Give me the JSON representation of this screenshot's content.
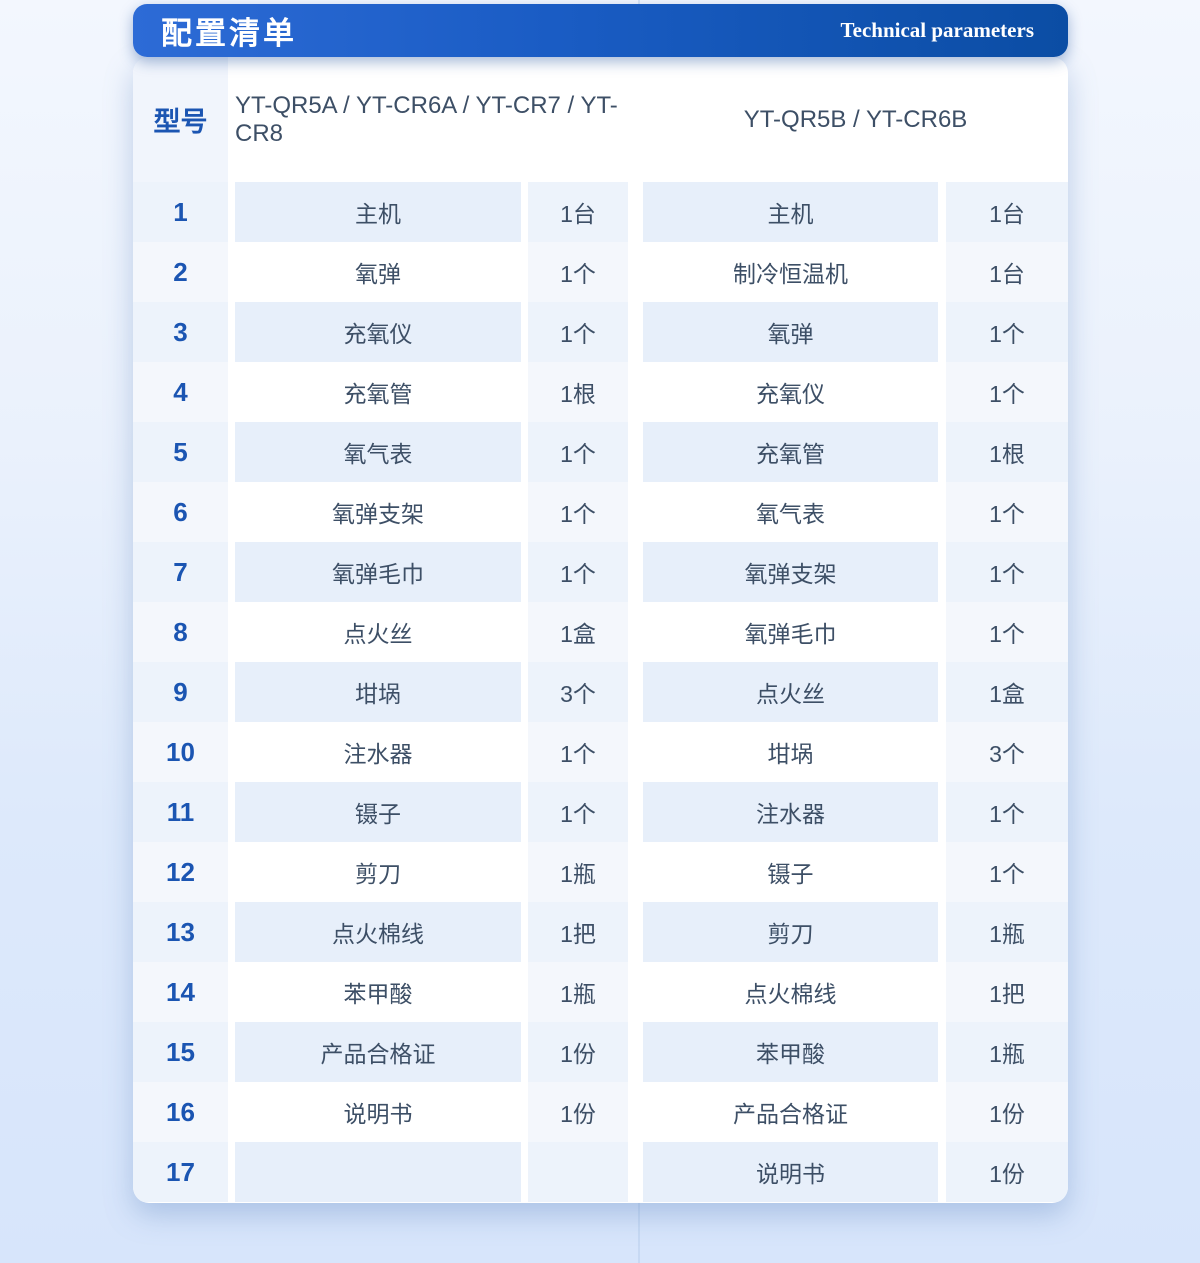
{
  "header": {
    "title": "配置清单",
    "subtitle": "Technical parameters"
  },
  "model_row": {
    "label": "型号",
    "model_a": "YT-QR5A / YT-CR6A / YT-CR7 / YT-CR8",
    "model_b": "YT-QR5B / YT-CR6B"
  },
  "table": {
    "rows": [
      {
        "no": "1",
        "item_a": "主机",
        "qty_a": "1台",
        "item_b": "主机",
        "qty_b": "1台"
      },
      {
        "no": "2",
        "item_a": "氧弹",
        "qty_a": "1个",
        "item_b": "制冷恒温机",
        "qty_b": "1台"
      },
      {
        "no": "3",
        "item_a": "充氧仪",
        "qty_a": "1个",
        "item_b": "氧弹",
        "qty_b": "1个"
      },
      {
        "no": "4",
        "item_a": "充氧管",
        "qty_a": "1根",
        "item_b": "充氧仪",
        "qty_b": "1个"
      },
      {
        "no": "5",
        "item_a": "氧气表",
        "qty_a": "1个",
        "item_b": "充氧管",
        "qty_b": "1根"
      },
      {
        "no": "6",
        "item_a": "氧弹支架",
        "qty_a": "1个",
        "item_b": "氧气表",
        "qty_b": "1个"
      },
      {
        "no": "7",
        "item_a": "氧弹毛巾",
        "qty_a": "1个",
        "item_b": "氧弹支架",
        "qty_b": "1个"
      },
      {
        "no": "8",
        "item_a": "点火丝",
        "qty_a": "1盒",
        "item_b": "氧弹毛巾",
        "qty_b": "1个"
      },
      {
        "no": "9",
        "item_a": "坩埚",
        "qty_a": "3个",
        "item_b": "点火丝",
        "qty_b": "1盒"
      },
      {
        "no": "10",
        "item_a": "注水器",
        "qty_a": "1个",
        "item_b": "坩埚",
        "qty_b": "3个"
      },
      {
        "no": "11",
        "item_a": "镊子",
        "qty_a": "1个",
        "item_b": "注水器",
        "qty_b": "1个"
      },
      {
        "no": "12",
        "item_a": "剪刀",
        "qty_a": "1瓶",
        "item_b": "镊子",
        "qty_b": "1个"
      },
      {
        "no": "13",
        "item_a": "点火棉线",
        "qty_a": "1把",
        "item_b": "剪刀",
        "qty_b": "1瓶"
      },
      {
        "no": "14",
        "item_a": "苯甲酸",
        "qty_a": "1瓶",
        "item_b": "点火棉线",
        "qty_b": "1把"
      },
      {
        "no": "15",
        "item_a": "产品合格证",
        "qty_a": "1份",
        "item_b": "苯甲酸",
        "qty_b": "1瓶"
      },
      {
        "no": "16",
        "item_a": "说明书",
        "qty_a": "1份",
        "item_b": "产品合格证",
        "qty_b": "1份"
      },
      {
        "no": "17",
        "item_a": "",
        "qty_a": "",
        "item_b": "说明书",
        "qty_b": "1份"
      }
    ]
  },
  "colors": {
    "header_gradient_left": "#2d6bd6",
    "header_gradient_right": "#0b4da4",
    "row_tint": "#e7effa",
    "column_tint": "#f4f7fc",
    "number_text": "#1b55b2",
    "body_text": "#3d4f66",
    "page_background_bottom": "#d7e5fb"
  }
}
